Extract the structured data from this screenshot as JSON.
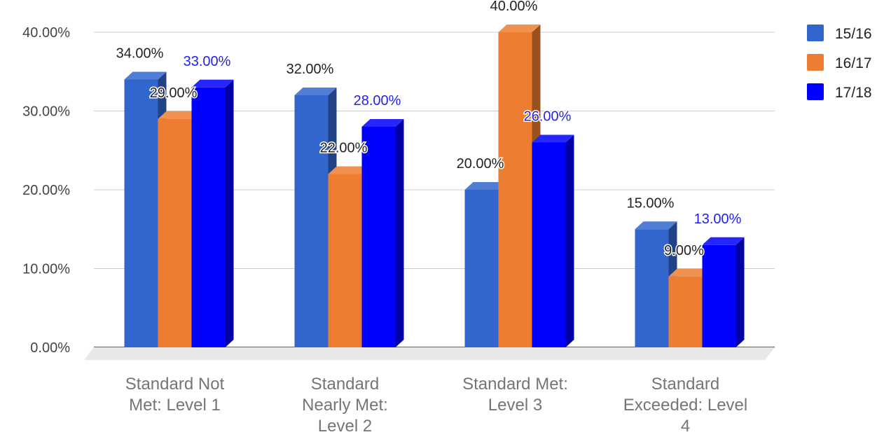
{
  "chart_data": {
    "type": "bar",
    "style": "3d-clustered-column",
    "categories": [
      [
        "Standard Not",
        "Met: Level 1"
      ],
      [
        "Standard",
        "Nearly Met:",
        "Level 2"
      ],
      [
        "Standard Met:",
        "Level 3"
      ],
      [
        "Standard",
        "Exceeded: Level",
        "4"
      ]
    ],
    "series": [
      {
        "name": "15/16",
        "color": "#3366cc",
        "values": [
          34,
          32,
          20,
          15
        ],
        "labels": [
          "34.00%",
          "32.00%",
          "20.00%",
          "15.00%"
        ],
        "label_color": "#222222"
      },
      {
        "name": "16/17",
        "color": "#ed7d31",
        "values": [
          29,
          22,
          40,
          9
        ],
        "labels": [
          "29.00%",
          "22.00%",
          "40.00%",
          "9.00%"
        ],
        "label_color": "#222222"
      },
      {
        "name": "17/18",
        "color": "#0000ff",
        "values": [
          33,
          28,
          26,
          13
        ],
        "labels": [
          "33.00%",
          "28.00%",
          "26.00%",
          "13.00%"
        ],
        "label_color": "#2222ee"
      }
    ],
    "y_ticks": [
      0,
      10,
      20,
      30,
      40
    ],
    "y_tick_labels": [
      "0.00%",
      "10.00%",
      "20.00%",
      "30.00%",
      "40.00%"
    ],
    "ylim": [
      0,
      40
    ],
    "grid": true,
    "legend_position": "right"
  }
}
